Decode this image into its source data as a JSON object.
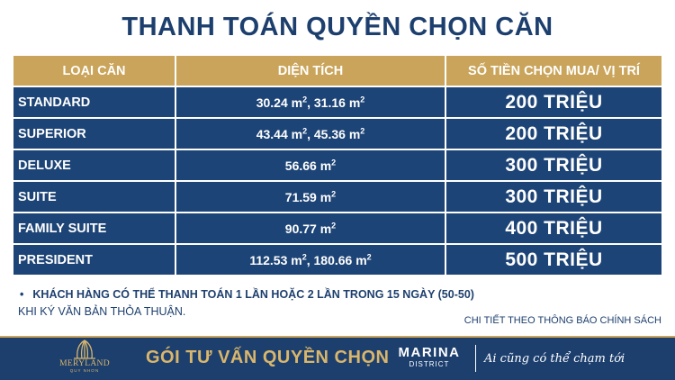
{
  "title": "THANH TOÁN QUYỀN CHỌN CĂN",
  "table": {
    "headers": [
      "LOẠI CĂN",
      "DIỆN TÍCH",
      "SỐ TIỀN CHỌN MUA/ VỊ TRÍ"
    ],
    "rows": [
      {
        "type": "STANDARD",
        "area": "30.24 m², 31.16 m²",
        "price": "200 TRIỆU"
      },
      {
        "type": "SUPERIOR",
        "area": "43.44 m², 45.36 m²",
        "price": "200 TRIỆU"
      },
      {
        "type": "DELUXE",
        "area": "56.66 m²",
        "price": "300 TRIỆU"
      },
      {
        "type": "SUITE",
        "area": "71.59 m²",
        "price": "300 TRIỆU"
      },
      {
        "type": "FAMILY SUITE",
        "area": "90.77 m²",
        "price": "400 TRIỆU"
      },
      {
        "type": "PRESIDENT",
        "area": "112.53 m², 180.66 m²",
        "price": "500 TRIỆU"
      }
    ]
  },
  "notes": {
    "bullet": "•",
    "line1": "KHÁCH HÀNG CÓ THỂ THANH TOÁN 1 LẦN HOẶC 2 LẦN TRONG 15 NGÀY (50-50)",
    "line2": "KHI KÝ VĂN BẢN THỎA THUẬN.",
    "detail": "CHI TIẾT THEO THÔNG BÁO CHÍNH SÁCH"
  },
  "footer": {
    "logo_icon": "meryland-logo-icon",
    "logo_name": "MERYLAND",
    "logo_sub": "QUY NHƠN",
    "slogan": "GÓI TƯ VẤN QUYỀN CHỌN",
    "marina_title": "MARINA",
    "marina_sub": "DISTRICT",
    "tagline": "Ai cũng có thể chạm tới"
  },
  "colors": {
    "navy": "#1d3f6e",
    "gold": "#c9a45a",
    "row_bg": "#1d4476"
  }
}
